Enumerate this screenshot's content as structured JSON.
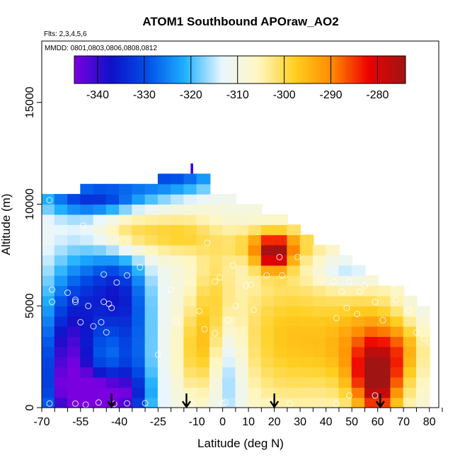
{
  "chart_data": {
    "type": "heatmap",
    "title": "ATOM1 Southbound APOraw_AO2",
    "notes": [
      "Flts: 2,3,4,5,6",
      "MMDD: 0801,0803,0806,0808,0812"
    ],
    "xlabel": "Latitude (deg N)",
    "ylabel": "Altitude (m)",
    "xlim": [
      -70,
      85
    ],
    "ylim": [
      0,
      17000
    ],
    "xticks": [
      -70,
      -55,
      -40,
      -25,
      -10,
      0,
      10,
      20,
      30,
      40,
      50,
      60,
      70,
      80
    ],
    "xticklabels": [
      "-70",
      "-55",
      "-40",
      "-25",
      "-10",
      "0",
      "10",
      "20",
      "30",
      "40",
      "50",
      "60",
      "70",
      "80"
    ],
    "yticks": [
      0,
      5000,
      10000,
      15000
    ],
    "yticklabels": [
      "0",
      "5000",
      "10000",
      "15000"
    ],
    "colorbar": {
      "range": [
        -345,
        -274
      ],
      "ticks": [
        -340,
        -330,
        -320,
        -310,
        -300,
        -290,
        -280
      ],
      "ticklabels": [
        "-340",
        "-330",
        "-320",
        "-310",
        "-300",
        "-290",
        "-280"
      ],
      "colors": [
        "#7a00e0",
        "#1010c8",
        "#0050e8",
        "#1fb0ff",
        "#e8f6ff",
        "#fff6c0",
        "#ffcf20",
        "#ff8a00",
        "#ee0000",
        "#a01414"
      ]
    },
    "field_blobs": [
      {
        "x": -60,
        "y": 1500,
        "v": -338,
        "sx": 8,
        "sy": 2200
      },
      {
        "x": -45,
        "y": 500,
        "v": -342,
        "sx": 10,
        "sy": 900
      },
      {
        "x": -55,
        "y": 5000,
        "v": -326,
        "sx": 10,
        "sy": 2200
      },
      {
        "x": -40,
        "y": 5800,
        "v": -328,
        "sx": 8,
        "sy": 1500
      },
      {
        "x": -35,
        "y": 2500,
        "v": -326,
        "sx": 6,
        "sy": 2000
      },
      {
        "x": -50,
        "y": 10300,
        "v": -332,
        "sx": 15,
        "sy": 600
      },
      {
        "x": -20,
        "y": 11500,
        "v": -330,
        "sx": 15,
        "sy": 700
      },
      {
        "x": -35,
        "y": 8600,
        "v": -298,
        "sx": 10,
        "sy": 800
      },
      {
        "x": -15,
        "y": 8500,
        "v": -300,
        "sx": 8,
        "sy": 700
      },
      {
        "x": 20,
        "y": 7500,
        "v": -284,
        "sx": 5,
        "sy": 600
      },
      {
        "x": 20,
        "y": 8100,
        "v": -296,
        "sx": 12,
        "sy": 600
      },
      {
        "x": 60,
        "y": 1300,
        "v": -281,
        "sx": 6,
        "sy": 1300
      },
      {
        "x": 58,
        "y": 3000,
        "v": -292,
        "sx": 13,
        "sy": 1800
      },
      {
        "x": 25,
        "y": 3500,
        "v": -297,
        "sx": 15,
        "sy": 2500
      },
      {
        "x": -3,
        "y": 5500,
        "v": -301,
        "sx": 6,
        "sy": 2000
      },
      {
        "x": -10,
        "y": 2800,
        "v": -299,
        "sx": 5,
        "sy": 1600
      },
      {
        "x": 3,
        "y": 1800,
        "v": -320,
        "sx": 4,
        "sy": 2000
      },
      {
        "x": -18,
        "y": 4000,
        "v": -310,
        "sx": 6,
        "sy": 4000
      },
      {
        "x": 48,
        "y": 6700,
        "v": -318,
        "sx": 8,
        "sy": 500
      },
      {
        "x": 75,
        "y": 4800,
        "v": -314,
        "sx": 6,
        "sy": 900
      },
      {
        "x": 70,
        "y": 3000,
        "v": -304,
        "sx": 4,
        "sy": 900
      }
    ],
    "field_base": -310,
    "coverage_top": [
      [
        -67.5,
        10500
      ],
      [
        -62.5,
        10500
      ],
      [
        -57.5,
        10500
      ],
      [
        -52.5,
        11000
      ],
      [
        -47.5,
        11000
      ],
      [
        -42.5,
        11000
      ],
      [
        -37.5,
        11000
      ],
      [
        -32.5,
        11000
      ],
      [
        -27.5,
        11000
      ],
      [
        -22.5,
        11500
      ],
      [
        -17.5,
        11500
      ],
      [
        -12.5,
        11500
      ],
      [
        -7.5,
        11500
      ],
      [
        -2.5,
        10500
      ],
      [
        2.5,
        10500
      ],
      [
        7.5,
        10000
      ],
      [
        12.5,
        10000
      ],
      [
        17.5,
        9500
      ],
      [
        22.5,
        9500
      ],
      [
        27.5,
        9000
      ],
      [
        32.5,
        8500
      ],
      [
        37.5,
        8000
      ],
      [
        42.5,
        8000
      ],
      [
        47.5,
        7500
      ],
      [
        52.5,
        7000
      ],
      [
        57.5,
        6500
      ],
      [
        62.5,
        6000
      ],
      [
        67.5,
        6000
      ],
      [
        72.5,
        5500
      ],
      [
        77.5,
        5000
      ]
    ],
    "spike": {
      "x": -12,
      "y0": 11500,
      "y1": 12000
    },
    "obs_points": [
      [
        -67,
        200
      ],
      [
        -57,
        200
      ],
      [
        -53,
        150
      ],
      [
        -48,
        250
      ],
      [
        -42,
        180
      ],
      [
        -37,
        210
      ],
      [
        -30,
        220
      ],
      [
        -12,
        230
      ],
      [
        0,
        200
      ],
      [
        1,
        250
      ],
      [
        -67,
        10200
      ],
      [
        -54,
        8950
      ],
      [
        -66,
        5800
      ],
      [
        -66,
        5200
      ],
      [
        -60,
        5650
      ],
      [
        -57,
        5200
      ],
      [
        -57,
        5300
      ],
      [
        -52,
        5000
      ],
      [
        -50,
        4000
      ],
      [
        -55,
        4200
      ],
      [
        -47,
        4200
      ],
      [
        -45,
        3700
      ],
      [
        -46,
        5200
      ],
      [
        -44,
        5100
      ],
      [
        -41,
        6150
      ],
      [
        -37,
        6500
      ],
      [
        -32,
        6900
      ],
      [
        -46,
        6550
      ],
      [
        -43,
        4900
      ],
      [
        -20,
        5800
      ],
      [
        -18,
        4250
      ],
      [
        -3,
        6200
      ],
      [
        -9,
        4750
      ],
      [
        -7,
        3850
      ],
      [
        -3,
        3650
      ],
      [
        -1,
        6400
      ],
      [
        2,
        4300
      ],
      [
        5,
        5000
      ],
      [
        9,
        6000
      ],
      [
        12,
        4800
      ],
      [
        17,
        6500
      ],
      [
        22,
        7400
      ],
      [
        29,
        7400
      ],
      [
        38,
        6300
      ],
      [
        43,
        6200
      ],
      [
        44,
        4400
      ],
      [
        48,
        4900
      ],
      [
        46,
        5700
      ],
      [
        49,
        6200
      ],
      [
        53,
        5700
      ],
      [
        52,
        4600
      ],
      [
        55,
        6000
      ],
      [
        59,
        5200
      ],
      [
        62,
        4300
      ],
      [
        66,
        6100
      ],
      [
        67,
        5300
      ],
      [
        72,
        4800
      ],
      [
        75,
        3700
      ],
      [
        78,
        3400
      ],
      [
        80,
        3200
      ],
      [
        49,
        600
      ],
      [
        59,
        600
      ],
      [
        44,
        200
      ],
      [
        26,
        200
      ],
      [
        18,
        300
      ],
      [
        -25,
        2600
      ],
      [
        11,
        6050
      ],
      [
        23,
        6500
      ],
      [
        -6,
        8100
      ],
      [
        4,
        7000
      ]
    ],
    "arrows_x": [
      -43,
      -14,
      20,
      61
    ]
  }
}
